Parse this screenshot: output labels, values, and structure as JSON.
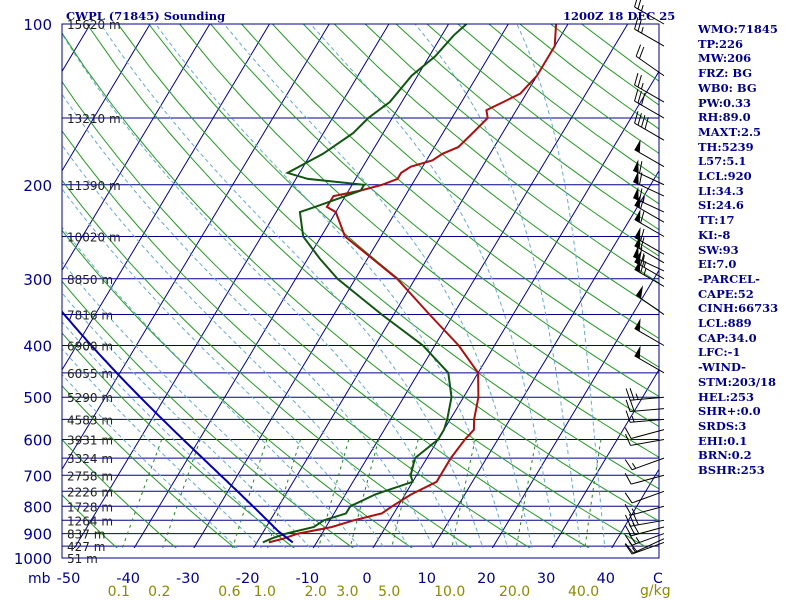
{
  "chart_data": {
    "type": "line",
    "title": "CWPL (71845) Sounding",
    "time_label": "1200Z 18 DEC 25",
    "x_unit": "C",
    "y_unit": "mb",
    "mixing_ratio_unit": "g/kg",
    "xlim": [
      -50,
      50
    ],
    "ylim": [
      1000,
      100
    ],
    "temperature_ticks": [
      -50,
      -40,
      -30,
      -20,
      -10,
      0,
      10,
      20,
      30,
      40
    ],
    "temperature_tick_labels": [
      "-50",
      "-40",
      "-30",
      "-20",
      "-10",
      "0",
      "10",
      "20",
      "30",
      "40"
    ],
    "pressure_ticks": [
      100,
      200,
      300,
      400,
      500,
      600,
      700,
      800,
      900,
      1000
    ],
    "pressure_tick_labels": [
      "100",
      "200",
      "300",
      "400",
      "500",
      "600",
      "700",
      "800",
      "900",
      "1000"
    ],
    "height_labels": [
      {
        "p": 100,
        "label": "15620 m"
      },
      {
        "p": 150,
        "label": "13210 m"
      },
      {
        "p": 200,
        "label": "11390 m"
      },
      {
        "p": 250,
        "label": "10020 m"
      },
      {
        "p": 300,
        "label": "8850 m"
      },
      {
        "p": 350,
        "label": "7816 m"
      },
      {
        "p": 400,
        "label": "6900 m"
      },
      {
        "p": 450,
        "label": "6055 m"
      },
      {
        "p": 500,
        "label": "5290 m"
      },
      {
        "p": 550,
        "label": "4583 m"
      },
      {
        "p": 600,
        "label": "3931 m"
      },
      {
        "p": 650,
        "label": "3324 m"
      },
      {
        "p": 700,
        "label": "2758 m"
      },
      {
        "p": 750,
        "label": "2226 m"
      },
      {
        "p": 800,
        "label": "1728 m"
      },
      {
        "p": 850,
        "label": "1264 m"
      },
      {
        "p": 900,
        "label": "837 m"
      },
      {
        "p": 950,
        "label": "427 m"
      },
      {
        "p": 1000,
        "label": "51 m"
      }
    ],
    "mixing_ratio_labels": [
      "0.1",
      "0.2",
      "0.6",
      "1.0",
      "2.0",
      "3.0",
      "5.0",
      "10.0",
      "20.0",
      "40.0"
    ],
    "mixing_ratio_values": [
      0.1,
      0.2,
      0.6,
      1.0,
      2.0,
      3.0,
      5.0,
      10.0,
      20.0,
      40.0
    ],
    "series": [
      {
        "name": "",
        "color": "#aa1111",
        "points": [
          [
            935,
            -18
          ],
          [
            920,
            -16
          ],
          [
            900,
            -14
          ],
          [
            875,
            -9
          ],
          [
            850,
            -6
          ],
          [
            825,
            -2
          ],
          [
            800,
            -1
          ],
          [
            760,
            1
          ],
          [
            720,
            4
          ],
          [
            700,
            4
          ],
          [
            650,
            4
          ],
          [
            600,
            4.5
          ],
          [
            575,
            5
          ],
          [
            550,
            4
          ],
          [
            500,
            2.5
          ],
          [
            450,
            0
          ],
          [
            400,
            -6
          ],
          [
            350,
            -14
          ],
          [
            300,
            -23
          ],
          [
            250,
            -36
          ],
          [
            225,
            -40
          ],
          [
            220,
            -42
          ],
          [
            210,
            -42
          ],
          [
            205,
            -38
          ],
          [
            200,
            -35
          ],
          [
            195,
            -33
          ],
          [
            190,
            -33
          ],
          [
            185,
            -32
          ],
          [
            180,
            -29
          ],
          [
            175,
            -28
          ],
          [
            170,
            -26
          ],
          [
            160,
            -25
          ],
          [
            150,
            -24
          ],
          [
            145,
            -25
          ],
          [
            140,
            -23
          ],
          [
            135,
            -21
          ],
          [
            125,
            -20
          ],
          [
            110,
            -20
          ],
          [
            100,
            -22
          ]
        ]
      },
      {
        "name": "",
        "color": "#115511",
        "points": [
          [
            935,
            -19
          ],
          [
            920,
            -18
          ],
          [
            900,
            -16
          ],
          [
            875,
            -12
          ],
          [
            850,
            -11
          ],
          [
            825,
            -8
          ],
          [
            800,
            -8
          ],
          [
            760,
            -5
          ],
          [
            720,
            0
          ],
          [
            700,
            -1
          ],
          [
            650,
            -2
          ],
          [
            600,
            0
          ],
          [
            575,
            0
          ],
          [
            550,
            -0.5
          ],
          [
            500,
            -2
          ],
          [
            450,
            -5
          ],
          [
            400,
            -12
          ],
          [
            350,
            -22
          ],
          [
            300,
            -33
          ],
          [
            275,
            -38
          ],
          [
            250,
            -43
          ],
          [
            225,
            -46
          ],
          [
            220,
            -44
          ],
          [
            210,
            -40
          ],
          [
            205,
            -38
          ],
          [
            200,
            -38
          ],
          [
            195,
            -48
          ],
          [
            190,
            -52
          ],
          [
            175,
            -48
          ],
          [
            160,
            -45
          ],
          [
            150,
            -44
          ],
          [
            140,
            -42
          ],
          [
            125,
            -41
          ],
          [
            115,
            -39
          ],
          [
            105,
            -38
          ],
          [
            100,
            -37
          ]
        ]
      }
    ],
    "parcel_path": {
      "color": "#0000aa",
      "start": {
        "p": 935,
        "t": -14
      },
      "lcl_p": 889
    },
    "winds": [
      {
        "p": 935,
        "dir": 250,
        "spd": 15
      },
      {
        "p": 920,
        "dir": 245,
        "spd": 20
      },
      {
        "p": 900,
        "dir": 250,
        "spd": 25
      },
      {
        "p": 875,
        "dir": 255,
        "spd": 30
      },
      {
        "p": 850,
        "dir": 260,
        "spd": 30
      },
      {
        "p": 800,
        "dir": 255,
        "spd": 15
      },
      {
        "p": 750,
        "dir": 250,
        "spd": 10
      },
      {
        "p": 700,
        "dir": 255,
        "spd": 10
      },
      {
        "p": 650,
        "dir": 250,
        "spd": 15
      },
      {
        "p": 600,
        "dir": 260,
        "spd": 10
      },
      {
        "p": 575,
        "dir": 255,
        "spd": 10
      },
      {
        "p": 550,
        "dir": 265,
        "spd": 15
      },
      {
        "p": 525,
        "dir": 265,
        "spd": 20
      },
      {
        "p": 500,
        "dir": 265,
        "spd": 25
      },
      {
        "p": 450,
        "dir": 300,
        "spd": 50
      },
      {
        "p": 400,
        "dir": 300,
        "spd": 50
      },
      {
        "p": 350,
        "dir": 305,
        "spd": 50
      },
      {
        "p": 310,
        "dir": 300,
        "spd": 65
      },
      {
        "p": 300,
        "dir": 300,
        "spd": 65
      },
      {
        "p": 290,
        "dir": 295,
        "spd": 65
      },
      {
        "p": 280,
        "dir": 300,
        "spd": 60
      },
      {
        "p": 270,
        "dir": 300,
        "spd": 60
      },
      {
        "p": 250,
        "dir": 300,
        "spd": 60
      },
      {
        "p": 235,
        "dir": 300,
        "spd": 60
      },
      {
        "p": 225,
        "dir": 295,
        "spd": 65
      },
      {
        "p": 210,
        "dir": 295,
        "spd": 60
      },
      {
        "p": 200,
        "dir": 295,
        "spd": 60
      },
      {
        "p": 185,
        "dir": 300,
        "spd": 50
      },
      {
        "p": 165,
        "dir": 300,
        "spd": 40
      },
      {
        "p": 150,
        "dir": 300,
        "spd": 30
      },
      {
        "p": 140,
        "dir": 300,
        "spd": 25
      },
      {
        "p": 125,
        "dir": 305,
        "spd": 20
      },
      {
        "p": 110,
        "dir": 300,
        "spd": 25
      },
      {
        "p": 100,
        "dir": 300,
        "spd": 25
      }
    ],
    "indices": [
      "WMO:71845",
      "TP:226",
      "MW:206",
      "FRZ: BG",
      "WB0: BG",
      "PW:0.33",
      "RH:89.0",
      "MAXT:2.5",
      "TH:5239",
      "L57:5.1",
      "LCL:920",
      "LI:34.3",
      "SI:24.6",
      "TT:17",
      "KI:-8",
      "SW:93",
      "EI:7.0",
      "-PARCEL-",
      "CAPE:52",
      "CINH:66733",
      "LCL:889",
      "CAP:34.0",
      "LFC:-1",
      "-WIND-",
      "STM:203/18",
      "HEL:253",
      "SHR+:0.0",
      "SRDS:3",
      "EHI:0.1",
      "BRN:0.2",
      "BSHR:253"
    ],
    "colors": {
      "isobar": "#00008b",
      "isotherm": "#00008b",
      "dry_adiabat": "#229922",
      "moist_adiabat": "#66aacc",
      "mixing_ratio": "#228822",
      "label": "#8b8b00",
      "title": "#00008b",
      "height_label": "#222222"
    }
  }
}
